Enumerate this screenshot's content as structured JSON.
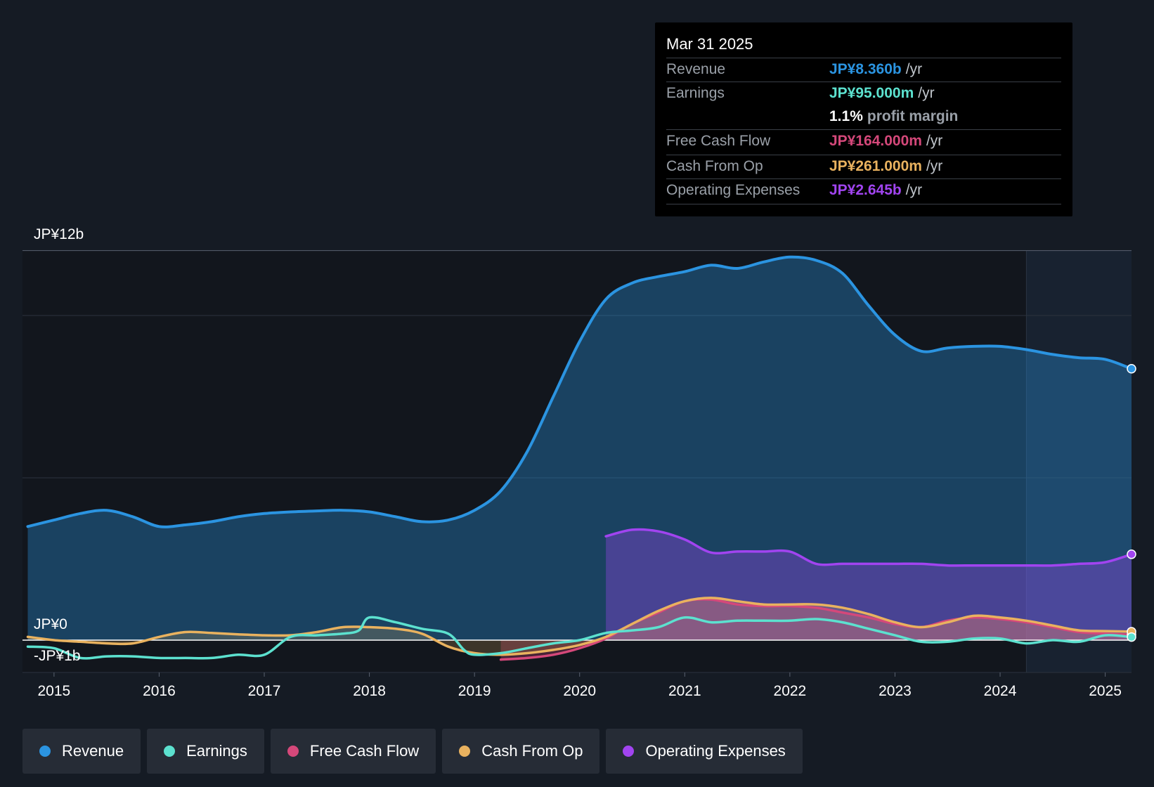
{
  "tooltip": {
    "date": "Mar 31 2025",
    "rows": [
      {
        "label": "Revenue",
        "value": "JP¥8.360b",
        "unit": "/yr",
        "color": "#2b94e1"
      },
      {
        "label": "Earnings",
        "value": "JP¥95.000m",
        "unit": "/yr",
        "color": "#5ce1cf"
      },
      {
        "label": "",
        "value": "1.1%",
        "sub": "profit margin",
        "color": "#ffffff"
      },
      {
        "label": "Free Cash Flow",
        "value": "JP¥164.000m",
        "unit": "/yr",
        "color": "#d5487a"
      },
      {
        "label": "Cash From Op",
        "value": "JP¥261.000m",
        "unit": "/yr",
        "color": "#e9b25f"
      },
      {
        "label": "Operating Expenses",
        "value": "JP¥2.645b",
        "unit": "/yr",
        "color": "#a144f0"
      }
    ]
  },
  "legend": [
    {
      "label": "Revenue",
      "color": "#2b94e1"
    },
    {
      "label": "Earnings",
      "color": "#5ce1cf"
    },
    {
      "label": "Free Cash Flow",
      "color": "#d5487a"
    },
    {
      "label": "Cash From Op",
      "color": "#e9b25f"
    },
    {
      "label": "Operating Expenses",
      "color": "#a144f0"
    }
  ],
  "chart_data": {
    "type": "area",
    "y_axis_labels": [
      {
        "label": "JP¥12b",
        "value": 12
      },
      {
        "label": "JP¥0",
        "value": 0
      },
      {
        "label": "-JP¥1b",
        "value": -1
      }
    ],
    "ylim": [
      -1,
      12
    ],
    "xlim": [
      2014.7,
      2025.25
    ],
    "x_ticks": [
      "2015",
      "2016",
      "2017",
      "2018",
      "2019",
      "2020",
      "2021",
      "2022",
      "2023",
      "2024",
      "2025"
    ],
    "x_tick_values": [
      2015,
      2016,
      2017,
      2018,
      2019,
      2020,
      2021,
      2022,
      2023,
      2024,
      2025
    ],
    "forecast_start": 2024.25,
    "series": [
      {
        "name": "Revenue",
        "color": "#2b94e1",
        "x": [
          2014.75,
          2015.0,
          2015.25,
          2015.5,
          2015.75,
          2016.0,
          2016.25,
          2016.5,
          2016.75,
          2017.0,
          2017.25,
          2017.5,
          2017.75,
          2018.0,
          2018.25,
          2018.5,
          2018.75,
          2019.0,
          2019.25,
          2019.5,
          2019.75,
          2020.0,
          2020.25,
          2020.5,
          2020.75,
          2021.0,
          2021.25,
          2021.5,
          2021.75,
          2022.0,
          2022.25,
          2022.5,
          2022.75,
          2023.0,
          2023.25,
          2023.5,
          2023.75,
          2024.0,
          2024.25,
          2024.5,
          2024.75,
          2025.0,
          2025.25
        ],
        "values": [
          3.5,
          3.7,
          3.9,
          4.0,
          3.8,
          3.5,
          3.55,
          3.65,
          3.8,
          3.9,
          3.95,
          3.98,
          4.0,
          3.95,
          3.8,
          3.65,
          3.7,
          4.0,
          4.6,
          5.8,
          7.5,
          9.2,
          10.5,
          11.0,
          11.2,
          11.35,
          11.55,
          11.45,
          11.65,
          11.8,
          11.7,
          11.3,
          10.3,
          9.4,
          8.9,
          9.0,
          9.05,
          9.05,
          8.95,
          8.8,
          8.7,
          8.65,
          8.36
        ]
      },
      {
        "name": "Earnings",
        "color": "#5ce1cf",
        "x": [
          2014.75,
          2015.0,
          2015.25,
          2015.5,
          2015.75,
          2016.0,
          2016.25,
          2016.5,
          2016.75,
          2017.0,
          2017.25,
          2017.5,
          2017.75,
          2017.9,
          2018.0,
          2018.25,
          2018.5,
          2018.75,
          2018.9,
          2019.0,
          2019.25,
          2019.5,
          2019.75,
          2020.0,
          2020.25,
          2020.5,
          2020.75,
          2021.0,
          2021.25,
          2021.5,
          2021.75,
          2022.0,
          2022.25,
          2022.5,
          2022.75,
          2023.0,
          2023.25,
          2023.5,
          2023.75,
          2024.0,
          2024.25,
          2024.5,
          2024.75,
          2025.0,
          2025.25
        ],
        "values": [
          -0.2,
          -0.25,
          -0.55,
          -0.5,
          -0.5,
          -0.55,
          -0.55,
          -0.55,
          -0.45,
          -0.45,
          0.1,
          0.15,
          0.2,
          0.3,
          0.7,
          0.55,
          0.35,
          0.2,
          -0.3,
          -0.45,
          -0.4,
          -0.25,
          -0.1,
          0.0,
          0.22,
          0.3,
          0.4,
          0.7,
          0.55,
          0.6,
          0.6,
          0.6,
          0.65,
          0.55,
          0.35,
          0.15,
          -0.05,
          -0.05,
          0.05,
          0.05,
          -0.1,
          0.0,
          -0.05,
          0.15,
          0.095
        ]
      },
      {
        "name": "Free Cash Flow",
        "color": "#d5487a",
        "x": [
          2019.25,
          2019.5,
          2019.75,
          2020.0,
          2020.25,
          2020.5,
          2020.75,
          2021.0,
          2021.25,
          2021.5,
          2021.75,
          2022.0,
          2022.25,
          2022.5,
          2022.75,
          2023.0,
          2023.25,
          2023.5,
          2023.75,
          2024.0,
          2024.25,
          2024.5,
          2024.75,
          2025.0,
          2025.25
        ],
        "values": [
          -0.6,
          -0.55,
          -0.45,
          -0.25,
          0.05,
          0.5,
          0.85,
          1.2,
          1.25,
          1.1,
          1.05,
          1.05,
          1.0,
          0.85,
          0.7,
          0.5,
          0.4,
          0.6,
          0.7,
          0.65,
          0.55,
          0.4,
          0.25,
          0.2,
          0.164
        ]
      },
      {
        "name": "Cash From Op",
        "color": "#e9b25f",
        "x": [
          2014.75,
          2015.0,
          2015.25,
          2015.5,
          2015.75,
          2016.0,
          2016.25,
          2016.5,
          2016.75,
          2017.0,
          2017.25,
          2017.5,
          2017.75,
          2018.0,
          2018.25,
          2018.5,
          2018.75,
          2019.0,
          2019.25,
          2019.5,
          2019.75,
          2020.0,
          2020.25,
          2020.5,
          2020.75,
          2021.0,
          2021.25,
          2021.5,
          2021.75,
          2022.0,
          2022.25,
          2022.5,
          2022.75,
          2023.0,
          2023.25,
          2023.5,
          2023.75,
          2024.0,
          2024.25,
          2024.5,
          2024.75,
          2025.0,
          2025.25
        ],
        "values": [
          0.1,
          0.0,
          -0.05,
          -0.1,
          -0.1,
          0.1,
          0.25,
          0.22,
          0.18,
          0.15,
          0.15,
          0.25,
          0.4,
          0.4,
          0.35,
          0.2,
          -0.2,
          -0.4,
          -0.45,
          -0.4,
          -0.3,
          -0.15,
          0.1,
          0.5,
          0.9,
          1.2,
          1.3,
          1.2,
          1.1,
          1.1,
          1.1,
          1.0,
          0.8,
          0.55,
          0.4,
          0.55,
          0.75,
          0.7,
          0.6,
          0.45,
          0.3,
          0.28,
          0.261
        ]
      },
      {
        "name": "Operating Expenses",
        "color": "#a144f0",
        "x": [
          2020.25,
          2020.5,
          2020.75,
          2021.0,
          2021.25,
          2021.5,
          2021.75,
          2022.0,
          2022.25,
          2022.5,
          2022.75,
          2023.0,
          2023.25,
          2023.5,
          2023.75,
          2024.0,
          2024.25,
          2024.5,
          2024.75,
          2025.0,
          2025.25
        ],
        "values": [
          3.2,
          3.4,
          3.35,
          3.1,
          2.7,
          2.73,
          2.73,
          2.73,
          2.35,
          2.35,
          2.35,
          2.35,
          2.35,
          2.3,
          2.3,
          2.3,
          2.3,
          2.3,
          2.35,
          2.4,
          2.645
        ]
      }
    ]
  }
}
